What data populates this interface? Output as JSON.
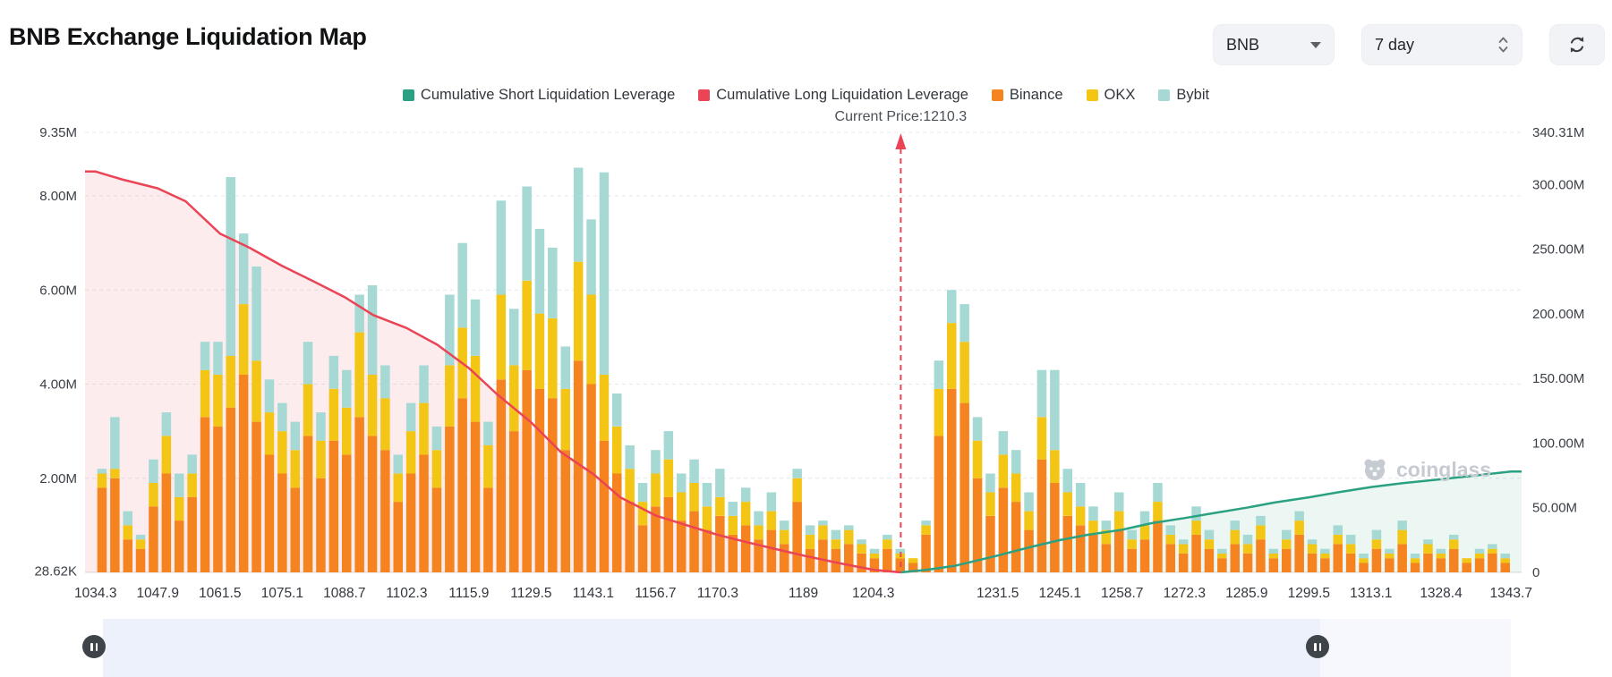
{
  "header": {
    "title": "BNB Exchange Liquidation Map"
  },
  "controls": {
    "coin": {
      "value": "BNB"
    },
    "period": {
      "value": "7 day"
    },
    "refresh": {
      "icon": "refresh-icon"
    }
  },
  "legend": [
    {
      "label": "Cumulative Short Liquidation Leverage",
      "color": "#2ba183"
    },
    {
      "label": "Cumulative Long Liquidation Leverage",
      "color": "#ea4456"
    },
    {
      "label": "Binance",
      "color": "#f5831f"
    },
    {
      "label": "OKX",
      "color": "#f3c515"
    },
    {
      "label": "Bybit",
      "color": "#a6d9d3"
    }
  ],
  "current_price_label": "Current Price:1210.3",
  "watermark": {
    "text": "coinglass"
  },
  "slider": {
    "track_color": "#edf1fc",
    "handle_color": "#3e444a",
    "handle_icon": "pause-bars"
  },
  "chart_data": {
    "type": "bar",
    "stacked": true,
    "title": "BNB Exchange Liquidation Map",
    "current_price": 1210.3,
    "grid": "dashed-horizontal",
    "legend_position": "top-center",
    "x_axis": {
      "domain": [
        1032,
        1346
      ],
      "ticks": [
        [
          1034.3,
          "1034.3"
        ],
        [
          1047.9,
          "1047.9"
        ],
        [
          1061.5,
          "1061.5"
        ],
        [
          1075.1,
          "1075.1"
        ],
        [
          1088.7,
          "1088.7"
        ],
        [
          1102.3,
          "1102.3"
        ],
        [
          1115.9,
          "1115.9"
        ],
        [
          1129.5,
          "1129.5"
        ],
        [
          1143.1,
          "1143.1"
        ],
        [
          1156.7,
          "1156.7"
        ],
        [
          1170.3,
          "1170.3"
        ],
        [
          1189,
          "1189"
        ],
        [
          1204.3,
          "1204.3"
        ],
        [
          1231.5,
          "1231.5"
        ],
        [
          1245.1,
          "1245.1"
        ],
        [
          1258.7,
          "1258.7"
        ],
        [
          1272.3,
          "1272.3"
        ],
        [
          1285.9,
          "1285.9"
        ],
        [
          1299.5,
          "1299.5"
        ],
        [
          1313.1,
          "1313.1"
        ],
        [
          1328.4,
          "1328.4"
        ],
        [
          1343.7,
          "1343.7"
        ]
      ]
    },
    "left_axis": {
      "unit": "M",
      "max": 9.35,
      "ticks": [
        {
          "label": "9.35M",
          "value": 9.35
        },
        {
          "label": "8.00M",
          "value": 8
        },
        {
          "label": "6.00M",
          "value": 6
        },
        {
          "label": "4.00M",
          "value": 4
        },
        {
          "label": "2.00M",
          "value": 2
        },
        {
          "label": "28.62K",
          "value": 0.02862
        }
      ]
    },
    "right_axis": {
      "unit": "M",
      "max": 340.31,
      "ticks": [
        {
          "label": "340.31M",
          "value": 340.31
        },
        {
          "label": "300.00M",
          "value": 300
        },
        {
          "label": "250.00M",
          "value": 250
        },
        {
          "label": "200.00M",
          "value": 200
        },
        {
          "label": "150.00M",
          "value": 150
        },
        {
          "label": "100.00M",
          "value": 100
        },
        {
          "label": "50.00M",
          "value": 50
        },
        {
          "label": "0",
          "value": 0
        }
      ]
    },
    "series_colors": {
      "binance": "#f5831f",
      "okx": "#f3c515",
      "bybit": "#a6d9d3"
    },
    "line_colors": {
      "long": "#ea4456",
      "short": "#2ba183"
    },
    "fills": {
      "long": "rgba(234,68,86,0.10)",
      "short": "rgba(43,161,131,0.09)"
    },
    "bar_series_order": [
      "binance",
      "okx",
      "bybit"
    ],
    "bar_start_price": 1034.3,
    "bar_step": 2.814,
    "bar_unit": "M",
    "bars": [
      [
        1.8,
        0.3,
        0.1
      ],
      [
        2.0,
        0.2,
        1.1
      ],
      [
        0.7,
        0.3,
        0.3
      ],
      [
        0.5,
        0.2,
        0.1
      ],
      [
        1.4,
        0.5,
        0.5
      ],
      [
        2.1,
        0.8,
        0.5
      ],
      [
        1.1,
        0.5,
        0.5
      ],
      [
        1.6,
        0.5,
        0.4
      ],
      [
        3.3,
        1.0,
        0.6
      ],
      [
        3.1,
        1.1,
        0.7
      ],
      [
        3.5,
        1.1,
        3.8
      ],
      [
        4.2,
        1.5,
        1.5
      ],
      [
        3.2,
        1.3,
        2.0
      ],
      [
        2.5,
        0.9,
        0.7
      ],
      [
        2.1,
        0.9,
        0.6
      ],
      [
        1.8,
        0.8,
        0.6
      ],
      [
        2.9,
        1.1,
        0.9
      ],
      [
        2.0,
        0.8,
        0.6
      ],
      [
        2.8,
        1.1,
        0.7
      ],
      [
        2.5,
        1.0,
        0.8
      ],
      [
        3.3,
        1.8,
        0.8
      ],
      [
        2.9,
        1.3,
        1.9
      ],
      [
        2.6,
        1.1,
        0.7
      ],
      [
        1.5,
        0.6,
        0.4
      ],
      [
        2.1,
        0.9,
        0.6
      ],
      [
        2.5,
        1.1,
        0.8
      ],
      [
        1.8,
        0.8,
        0.5
      ],
      [
        3.1,
        1.3,
        1.5
      ],
      [
        3.7,
        1.5,
        1.8
      ],
      [
        3.2,
        1.4,
        1.2
      ],
      [
        1.8,
        0.9,
        0.5
      ],
      [
        4.1,
        1.8,
        2.0
      ],
      [
        3.0,
        1.4,
        1.2
      ],
      [
        4.3,
        1.9,
        2.0
      ],
      [
        3.9,
        1.6,
        1.8
      ],
      [
        3.7,
        1.7,
        1.5
      ],
      [
        2.6,
        1.3,
        0.9
      ],
      [
        4.5,
        2.1,
        2.0
      ],
      [
        4.0,
        1.9,
        1.6
      ],
      [
        2.8,
        1.4,
        4.3
      ],
      [
        2.1,
        1.0,
        0.7
      ],
      [
        1.5,
        0.7,
        0.5
      ],
      [
        1.0,
        0.5,
        0.4
      ],
      [
        1.4,
        0.7,
        0.5
      ],
      [
        1.6,
        0.8,
        0.6
      ],
      [
        1.1,
        0.6,
        0.4
      ],
      [
        1.3,
        0.6,
        0.5
      ],
      [
        0.9,
        0.5,
        0.5
      ],
      [
        1.2,
        0.4,
        0.6
      ],
      [
        0.8,
        0.4,
        0.3
      ],
      [
        1.0,
        0.5,
        0.3
      ],
      [
        0.7,
        0.3,
        0.3
      ],
      [
        0.9,
        0.4,
        0.4
      ],
      [
        0.6,
        0.3,
        0.2
      ],
      [
        1.5,
        0.5,
        0.2
      ],
      [
        0.5,
        0.3,
        0.2
      ],
      [
        0.7,
        0.3,
        0.1
      ],
      [
        0.5,
        0.2,
        0.2
      ],
      [
        0.6,
        0.3,
        0.1
      ],
      [
        0.4,
        0.2,
        0.1
      ],
      [
        0.3,
        0.1,
        0.1
      ],
      [
        0.5,
        0.2,
        0.1
      ],
      [
        0.3,
        0.1,
        0.1
      ],
      [
        0.2,
        0.1,
        0.0
      ],
      [
        0.8,
        0.2,
        0.1
      ],
      [
        2.9,
        1.0,
        0.6
      ],
      [
        3.9,
        1.4,
        0.7
      ],
      [
        3.6,
        1.3,
        0.8
      ],
      [
        2.0,
        0.8,
        0.5
      ],
      [
        1.2,
        0.5,
        0.4
      ],
      [
        1.8,
        0.7,
        0.5
      ],
      [
        1.5,
        0.6,
        0.5
      ],
      [
        0.9,
        0.4,
        0.4
      ],
      [
        2.4,
        0.9,
        1.0
      ],
      [
        1.9,
        0.7,
        1.7
      ],
      [
        1.2,
        0.5,
        0.5
      ],
      [
        1.0,
        0.4,
        0.5
      ],
      [
        0.8,
        0.3,
        0.3
      ],
      [
        0.6,
        0.3,
        0.2
      ],
      [
        0.9,
        0.4,
        0.4
      ],
      [
        0.5,
        0.2,
        0.2
      ],
      [
        0.7,
        0.3,
        0.3
      ],
      [
        1.1,
        0.4,
        0.4
      ],
      [
        0.6,
        0.2,
        0.2
      ],
      [
        0.4,
        0.2,
        0.1
      ],
      [
        0.8,
        0.3,
        0.3
      ],
      [
        0.5,
        0.2,
        0.2
      ],
      [
        0.3,
        0.1,
        0.1
      ],
      [
        0.6,
        0.3,
        0.2
      ],
      [
        0.4,
        0.2,
        0.2
      ],
      [
        0.7,
        0.3,
        0.2
      ],
      [
        0.3,
        0.1,
        0.1
      ],
      [
        0.5,
        0.2,
        0.2
      ],
      [
        0.8,
        0.3,
        0.2
      ],
      [
        0.4,
        0.2,
        0.1
      ],
      [
        0.3,
        0.1,
        0.1
      ],
      [
        0.6,
        0.2,
        0.2
      ],
      [
        0.4,
        0.2,
        0.2
      ],
      [
        0.2,
        0.1,
        0.1
      ],
      [
        0.5,
        0.2,
        0.2
      ],
      [
        0.3,
        0.1,
        0.1
      ],
      [
        0.6,
        0.3,
        0.2
      ],
      [
        0.2,
        0.1,
        0.1
      ],
      [
        0.4,
        0.2,
        0.1
      ],
      [
        0.3,
        0.1,
        0.1
      ],
      [
        0.5,
        0.2,
        0.1
      ],
      [
        0.2,
        0.1,
        0.0
      ],
      [
        0.3,
        0.1,
        0.1
      ],
      [
        0.4,
        0.1,
        0.1
      ],
      [
        0.2,
        0.1,
        0.1
      ]
    ],
    "long_cumulative_axis": "right",
    "long_cumulative": [
      [
        1034.3,
        310
      ],
      [
        1040,
        304
      ],
      [
        1047.9,
        297
      ],
      [
        1054,
        287
      ],
      [
        1061.5,
        262
      ],
      [
        1068,
        251
      ],
      [
        1075.1,
        237
      ],
      [
        1082,
        225
      ],
      [
        1088.7,
        213
      ],
      [
        1095,
        199
      ],
      [
        1102.3,
        189
      ],
      [
        1109,
        176
      ],
      [
        1115.9,
        158
      ],
      [
        1122,
        138
      ],
      [
        1129.5,
        116
      ],
      [
        1136,
        93
      ],
      [
        1143.1,
        76
      ],
      [
        1149,
        58
      ],
      [
        1156.7,
        44
      ],
      [
        1163,
        37
      ],
      [
        1170.3,
        29
      ],
      [
        1177,
        23
      ],
      [
        1183,
        18
      ],
      [
        1189,
        13
      ],
      [
        1197,
        7
      ],
      [
        1204.3,
        2
      ],
      [
        1210.3,
        0
      ]
    ],
    "short_cumulative_axis": "right",
    "short_cumulative": [
      [
        1210.3,
        0
      ],
      [
        1216,
        2
      ],
      [
        1222,
        5
      ],
      [
        1231.5,
        13
      ],
      [
        1238,
        19
      ],
      [
        1245.1,
        25
      ],
      [
        1251,
        29
      ],
      [
        1258.7,
        33
      ],
      [
        1265,
        38
      ],
      [
        1272.3,
        42
      ],
      [
        1279,
        46
      ],
      [
        1285.9,
        50
      ],
      [
        1292,
        54
      ],
      [
        1299.5,
        58
      ],
      [
        1306,
        62
      ],
      [
        1313.1,
        66
      ],
      [
        1320,
        69
      ],
      [
        1328.4,
        72
      ],
      [
        1336,
        75
      ],
      [
        1343.7,
        78
      ]
    ]
  }
}
